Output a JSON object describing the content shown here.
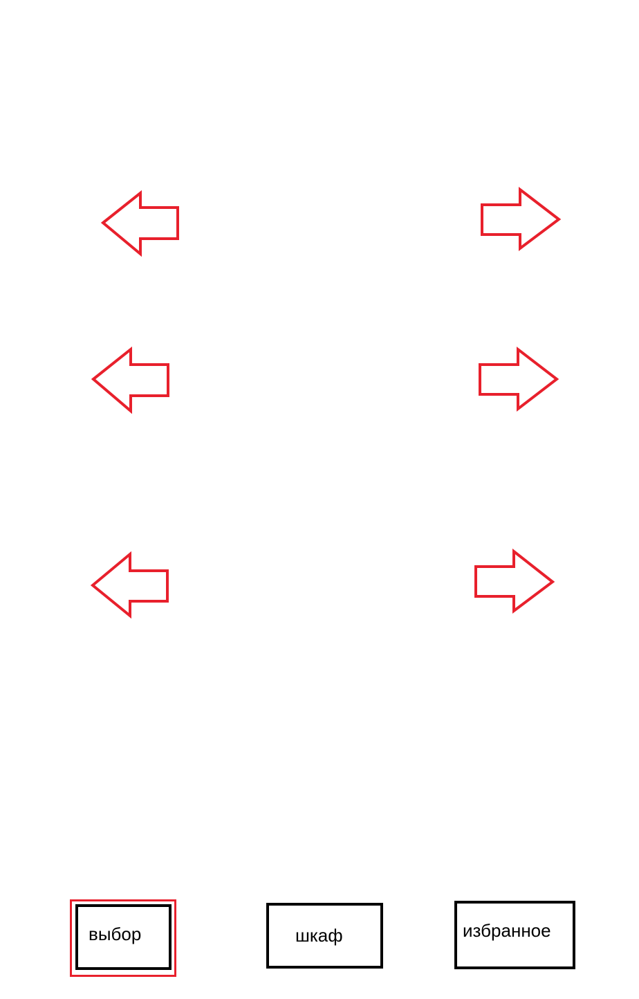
{
  "colors": {
    "accent": "#e8202c",
    "border": "#000000",
    "background": "#ffffff"
  },
  "arrows": [
    {
      "row": 1,
      "side": "left",
      "icon": "arrow-left-icon"
    },
    {
      "row": 1,
      "side": "right",
      "icon": "arrow-right-icon"
    },
    {
      "row": 2,
      "side": "left",
      "icon": "arrow-left-icon"
    },
    {
      "row": 2,
      "side": "right",
      "icon": "arrow-right-icon"
    },
    {
      "row": 3,
      "side": "left",
      "icon": "arrow-left-icon"
    },
    {
      "row": 3,
      "side": "right",
      "icon": "arrow-right-icon"
    }
  ],
  "nav": {
    "choice_label": "выбор",
    "wardrobe_label": "шкаф",
    "favorites_label": "избранное",
    "selected": "выбор"
  }
}
